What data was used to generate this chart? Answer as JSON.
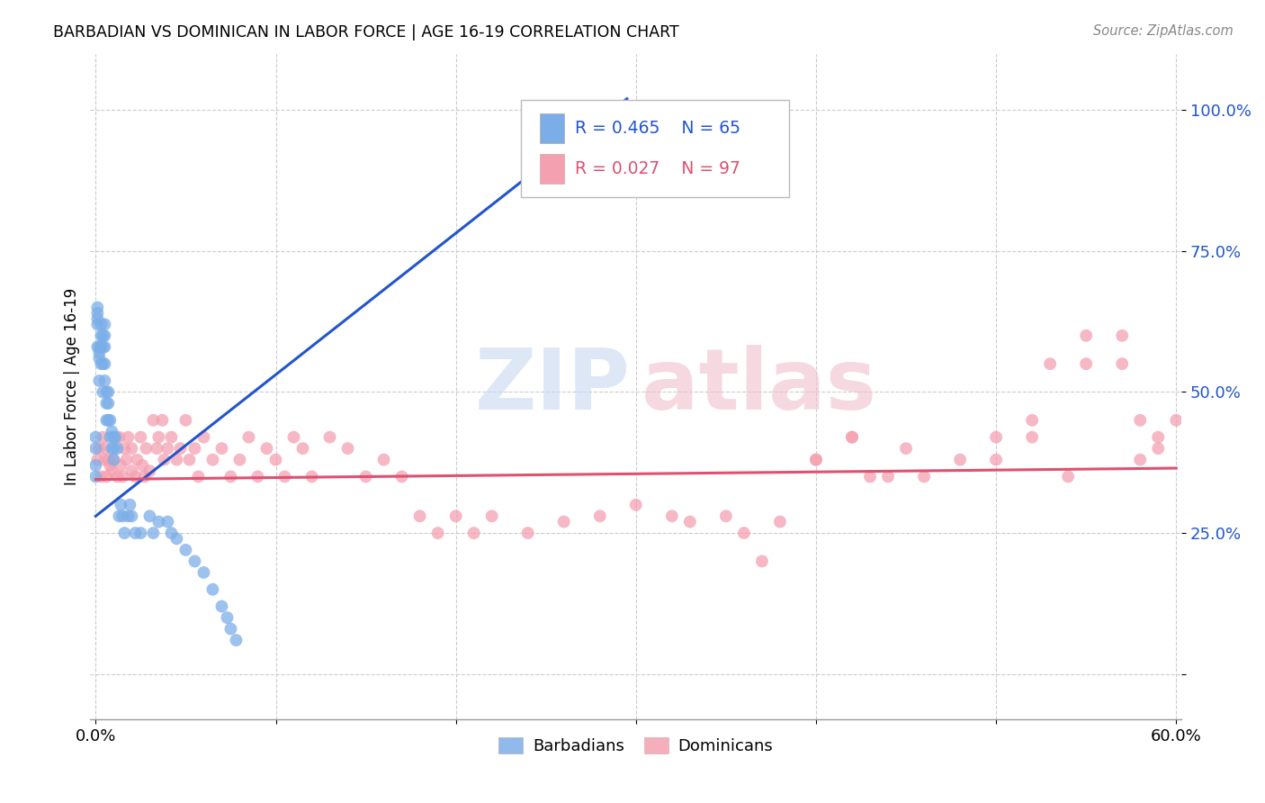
{
  "title": "BARBADIAN VS DOMINICAN IN LABOR FORCE | AGE 16-19 CORRELATION CHART",
  "source": "Source: ZipAtlas.com",
  "ylabel": "In Labor Force | Age 16-19",
  "xlim": [
    0.0,
    0.6
  ],
  "ylim": [
    -0.08,
    1.1
  ],
  "yticks": [
    0.0,
    0.25,
    0.5,
    0.75,
    1.0
  ],
  "ytick_labels": [
    "",
    "25.0%",
    "50.0%",
    "75.0%",
    "100.0%"
  ],
  "xticks": [
    0.0,
    0.1,
    0.2,
    0.3,
    0.4,
    0.5,
    0.6
  ],
  "xtick_labels": [
    "0.0%",
    "",
    "",
    "",
    "",
    "",
    "60.0%"
  ],
  "legend_blue_r": "R = 0.465",
  "legend_blue_n": "N = 65",
  "legend_pink_r": "R = 0.027",
  "legend_pink_n": "N = 97",
  "blue_color": "#7BAEE8",
  "pink_color": "#F4A0B0",
  "blue_line_color": "#2255CC",
  "pink_line_color": "#E05070",
  "blue_line_x": [
    0.0,
    0.295
  ],
  "blue_line_y": [
    0.28,
    1.02
  ],
  "pink_line_x": [
    0.0,
    0.6
  ],
  "pink_line_y": [
    0.345,
    0.365
  ],
  "barbadian_x": [
    0.0,
    0.0,
    0.0,
    0.0,
    0.001,
    0.001,
    0.001,
    0.001,
    0.001,
    0.002,
    0.002,
    0.002,
    0.002,
    0.003,
    0.003,
    0.003,
    0.003,
    0.004,
    0.004,
    0.004,
    0.004,
    0.005,
    0.005,
    0.005,
    0.005,
    0.005,
    0.006,
    0.006,
    0.006,
    0.007,
    0.007,
    0.007,
    0.008,
    0.008,
    0.009,
    0.009,
    0.01,
    0.01,
    0.01,
    0.011,
    0.012,
    0.013,
    0.014,
    0.015,
    0.016,
    0.018,
    0.019,
    0.02,
    0.022,
    0.025,
    0.03,
    0.032,
    0.035,
    0.04,
    0.042,
    0.045,
    0.05,
    0.055,
    0.06,
    0.065,
    0.07,
    0.073,
    0.075,
    0.078,
    0.295
  ],
  "barbadian_y": [
    0.35,
    0.37,
    0.4,
    0.42,
    0.62,
    0.63,
    0.64,
    0.65,
    0.58,
    0.56,
    0.58,
    0.57,
    0.52,
    0.6,
    0.62,
    0.58,
    0.55,
    0.6,
    0.58,
    0.55,
    0.5,
    0.6,
    0.62,
    0.58,
    0.55,
    0.52,
    0.5,
    0.48,
    0.45,
    0.5,
    0.48,
    0.45,
    0.45,
    0.42,
    0.43,
    0.4,
    0.38,
    0.4,
    0.42,
    0.42,
    0.4,
    0.28,
    0.3,
    0.28,
    0.25,
    0.28,
    0.3,
    0.28,
    0.25,
    0.25,
    0.28,
    0.25,
    0.27,
    0.27,
    0.25,
    0.24,
    0.22,
    0.2,
    0.18,
    0.15,
    0.12,
    0.1,
    0.08,
    0.06,
    1.0
  ],
  "dominican_x": [
    0.001,
    0.002,
    0.003,
    0.004,
    0.005,
    0.005,
    0.006,
    0.007,
    0.008,
    0.009,
    0.01,
    0.012,
    0.013,
    0.014,
    0.015,
    0.016,
    0.017,
    0.018,
    0.02,
    0.02,
    0.022,
    0.023,
    0.025,
    0.026,
    0.027,
    0.028,
    0.03,
    0.032,
    0.034,
    0.035,
    0.037,
    0.038,
    0.04,
    0.042,
    0.045,
    0.047,
    0.05,
    0.052,
    0.055,
    0.057,
    0.06,
    0.065,
    0.07,
    0.075,
    0.08,
    0.085,
    0.09,
    0.095,
    0.1,
    0.105,
    0.11,
    0.115,
    0.12,
    0.13,
    0.14,
    0.15,
    0.16,
    0.17,
    0.18,
    0.19,
    0.2,
    0.21,
    0.22,
    0.24,
    0.26,
    0.28,
    0.3,
    0.32,
    0.33,
    0.35,
    0.36,
    0.38,
    0.4,
    0.42,
    0.43,
    0.45,
    0.46,
    0.48,
    0.5,
    0.52,
    0.53,
    0.55,
    0.57,
    0.58,
    0.59,
    0.4,
    0.42,
    0.44,
    0.5,
    0.52,
    0.54,
    0.55,
    0.57,
    0.58,
    0.59,
    0.6,
    0.37
  ],
  "dominican_y": [
    0.38,
    0.4,
    0.35,
    0.42,
    0.38,
    0.4,
    0.35,
    0.38,
    0.37,
    0.36,
    0.38,
    0.35,
    0.42,
    0.37,
    0.35,
    0.4,
    0.38,
    0.42,
    0.36,
    0.4,
    0.35,
    0.38,
    0.42,
    0.37,
    0.35,
    0.4,
    0.36,
    0.45,
    0.4,
    0.42,
    0.45,
    0.38,
    0.4,
    0.42,
    0.38,
    0.4,
    0.45,
    0.38,
    0.4,
    0.35,
    0.42,
    0.38,
    0.4,
    0.35,
    0.38,
    0.42,
    0.35,
    0.4,
    0.38,
    0.35,
    0.42,
    0.4,
    0.35,
    0.42,
    0.4,
    0.35,
    0.38,
    0.35,
    0.28,
    0.25,
    0.28,
    0.25,
    0.28,
    0.25,
    0.27,
    0.28,
    0.3,
    0.28,
    0.27,
    0.28,
    0.25,
    0.27,
    0.38,
    0.42,
    0.35,
    0.4,
    0.35,
    0.38,
    0.42,
    0.45,
    0.55,
    0.6,
    0.55,
    0.45,
    0.4,
    0.38,
    0.42,
    0.35,
    0.38,
    0.42,
    0.35,
    0.55,
    0.6,
    0.38,
    0.42,
    0.45,
    0.2
  ]
}
